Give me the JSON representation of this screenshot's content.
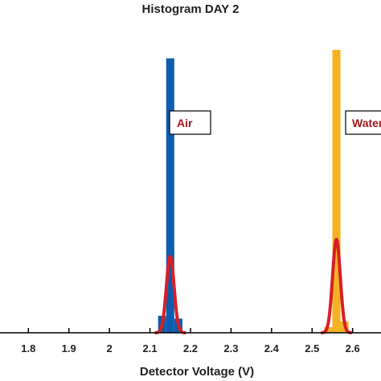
{
  "chart_data": {
    "type": "bar",
    "title": "Histogram DAY 2",
    "xlabel": "Detector Voltage (V)",
    "ylabel": "",
    "xlim": [
      1.73,
      2.67
    ],
    "ylim": [
      0,
      1
    ],
    "xticks": [
      "1.8",
      "1.9",
      "2",
      "2.1",
      "2.2",
      "2.3",
      "2.4",
      "2.5",
      "2.6"
    ],
    "grid": false,
    "bar_width": 0.02,
    "series": [
      {
        "name": "Air",
        "color": "#0e5cae",
        "bars": [
          {
            "x": 2.13,
            "y": 0.06
          },
          {
            "x": 2.15,
            "y": 0.97
          },
          {
            "x": 2.17,
            "y": 0.05
          }
        ],
        "fit": {
          "center": 2.15,
          "sigma": 0.0095,
          "peak": 0.27,
          "color": "#d81f26"
        }
      },
      {
        "name": "Water",
        "color": "#f4b223",
        "bars": [
          {
            "x": 2.54,
            "y": 0.02
          },
          {
            "x": 2.56,
            "y": 1.0
          },
          {
            "x": 2.58,
            "y": 0.04
          }
        ],
        "fit": {
          "center": 2.56,
          "sigma": 0.0095,
          "peak": 0.33,
          "color": "#d81f26"
        }
      }
    ],
    "annotations": [
      {
        "text": "Air",
        "boxed": true
      },
      {
        "text": "Water",
        "boxed": true
      }
    ]
  }
}
